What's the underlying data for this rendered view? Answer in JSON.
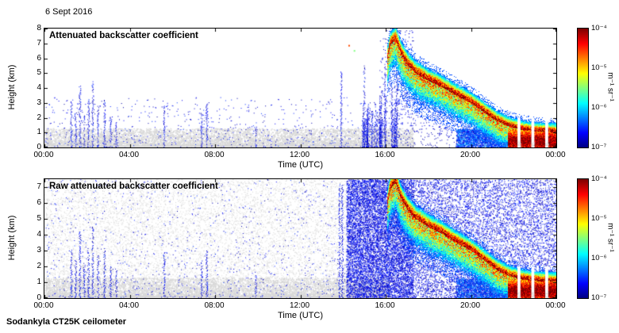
{
  "page": {
    "date_label": "6 Sept 2016",
    "footer": "Sodankyla CT25K ceilometer"
  },
  "chart_data": [
    {
      "type": "heatmap",
      "title": "Attenuated backscatter coefficient",
      "xlabel": "Time (UTC)",
      "ylabel": "Height (km)",
      "x_range_hours": [
        0,
        24
      ],
      "x_tick_hours": [
        0,
        4,
        8,
        12,
        16,
        20,
        24
      ],
      "x_tick_labels": [
        "00:00",
        "04:00",
        "08:00",
        "12:00",
        "16:00",
        "20:00",
        "00:00"
      ],
      "y_range_km": [
        0,
        8
      ],
      "y_tick_km": [
        0,
        1,
        2,
        3,
        4,
        5,
        6,
        7,
        8
      ],
      "y_tick_labels": [
        "0",
        "1",
        "2",
        "3",
        "4",
        "5",
        "6",
        "7",
        "8"
      ],
      "colorbar": {
        "label": "m⁻¹ sr⁻¹",
        "tick_labels": [
          "10⁻⁴",
          "10⁻⁵",
          "10⁻⁶",
          "10⁻⁷"
        ],
        "range_log10_m1sr1": [
          -7,
          -4
        ],
        "colormap": "jet"
      },
      "features": {
        "surface_aerosol_gray_layer": {
          "time_hours": [
            0,
            17.3
          ],
          "height_km": [
            0,
            1.3
          ]
        },
        "plume_track_time_height": [
          [
            16.05,
            5.8
          ],
          [
            16.2,
            6.9
          ],
          [
            16.45,
            7.3
          ],
          [
            16.7,
            6.3
          ],
          [
            17.0,
            5.6
          ],
          [
            17.4,
            5.0
          ],
          [
            18.0,
            4.5
          ],
          [
            18.6,
            4.1
          ],
          [
            19.2,
            3.6
          ],
          [
            20.0,
            3.0
          ],
          [
            20.6,
            2.4
          ],
          [
            21.2,
            1.8
          ],
          [
            21.8,
            1.4
          ],
          [
            22.4,
            1.2
          ],
          [
            23.0,
            1.1
          ],
          [
            24.0,
            1.05
          ]
        ],
        "precip_to_ground_after_hour": 21.7,
        "clear_gaps_hours": [
          22.25,
          22.9,
          23.55
        ],
        "aerosol_spikes_time_top_km": [
          [
            1.25,
            3.1
          ],
          [
            1.45,
            2.4
          ],
          [
            1.65,
            4.2
          ],
          [
            1.85,
            2.2
          ],
          [
            2.05,
            3.3
          ],
          [
            2.25,
            4.5
          ],
          [
            2.5,
            2.7
          ],
          [
            2.8,
            3.2
          ],
          [
            3.1,
            2.1
          ],
          [
            3.35,
            1.8
          ],
          [
            5.6,
            2.9
          ],
          [
            7.35,
            2.3
          ],
          [
            7.6,
            3.0
          ],
          [
            9.9,
            1.5
          ],
          [
            13.9,
            5.1
          ]
        ]
      },
      "render": {
        "gray_color": "#d8d8d8",
        "gray_surface": {
          "t": [
            0,
            17.3
          ],
          "hmax": 1.3,
          "n": 9000
        },
        "blue_ambient": {
          "t": [
            0,
            15.5
          ],
          "hmax": 3.4,
          "n": 650
        },
        "preplume_columns": {
          "t": [
            14.9,
            16.55
          ],
          "n": 42
        },
        "above_plume_dots": {
          "t": [
            15.7,
            17.3
          ],
          "hmax": 7.9,
          "n": 320
        },
        "subplume_dots": {
          "t": [
            16.4,
            21.8
          ],
          "n": 3200
        },
        "low_level_dots": {
          "t": [
            19.3,
            21.8
          ],
          "hmax": 1.25,
          "n": 2300
        },
        "isolated_dots": [
          [
            14.25,
            6.9,
            0.8
          ],
          [
            14.5,
            6.55,
            0.5
          ]
        ]
      }
    },
    {
      "type": "heatmap",
      "title": "Raw attenuated backscatter coefficient",
      "xlabel": "Time (UTC)",
      "ylabel": "Height (km)",
      "x_range_hours": [
        0,
        24
      ],
      "x_tick_hours": [
        0,
        4,
        8,
        12,
        16,
        20,
        24
      ],
      "x_tick_labels": [
        "00:00",
        "04:00",
        "08:00",
        "12:00",
        "16:00",
        "20:00",
        "00:00"
      ],
      "y_range_km": [
        0,
        7.5
      ],
      "y_tick_km": [
        0,
        1,
        2,
        3,
        4,
        5,
        6,
        7
      ],
      "y_tick_labels": [
        "0",
        "1",
        "2",
        "3",
        "4",
        "5",
        "6",
        "7"
      ],
      "colorbar": {
        "label": "m⁻¹ sr⁻¹",
        "tick_labels": [
          "10⁻⁴",
          "10⁻⁵",
          "10⁻⁶",
          "10⁻⁷"
        ],
        "range_log10_m1sr1": [
          -7,
          -4
        ],
        "colormap": "jet"
      },
      "features": {
        "surface_aerosol_gray_layer": {
          "time_hours": [
            0,
            16.2
          ],
          "height_km": [
            0,
            1.3
          ]
        },
        "plume_track_time_height": [
          [
            16.05,
            5.8
          ],
          [
            16.2,
            6.9
          ],
          [
            16.45,
            7.3
          ],
          [
            16.7,
            6.3
          ],
          [
            17.0,
            5.6
          ],
          [
            17.4,
            5.0
          ],
          [
            18.0,
            4.5
          ],
          [
            18.6,
            4.1
          ],
          [
            19.2,
            3.6
          ],
          [
            20.0,
            3.0
          ],
          [
            20.6,
            2.4
          ],
          [
            21.2,
            1.8
          ],
          [
            21.8,
            1.4
          ],
          [
            22.4,
            1.2
          ],
          [
            23.0,
            1.1
          ],
          [
            24.0,
            1.05
          ]
        ],
        "precip_to_ground_after_hour": 21.7,
        "clear_gaps_hours": [
          22.25,
          22.9,
          23.55
        ],
        "aerosol_spikes_time_top_km": [
          [
            1.25,
            3.1
          ],
          [
            1.45,
            2.4
          ],
          [
            1.65,
            4.2
          ],
          [
            1.85,
            2.2
          ],
          [
            2.05,
            3.3
          ],
          [
            2.25,
            4.5
          ],
          [
            2.5,
            2.7
          ],
          [
            2.8,
            3.2
          ],
          [
            3.1,
            2.1
          ],
          [
            3.35,
            1.8
          ],
          [
            5.6,
            2.9
          ],
          [
            7.35,
            2.3
          ],
          [
            7.6,
            3.0
          ],
          [
            9.9,
            1.5
          ],
          [
            13.82,
            7.2
          ],
          [
            13.95,
            7.2
          ]
        ]
      },
      "render": {
        "gray_color": "#d8d8d8",
        "gray_surface": {
          "t": [
            0,
            16.2
          ],
          "hmax": 1.3,
          "n": 8000
        },
        "gray_wash": {
          "t": [
            0,
            14.15
          ],
          "hmax": 7.5,
          "n": 8000
        },
        "blue_ambient": {
          "t": [
            0,
            14.15
          ],
          "hmax": 7.5,
          "n": 1000
        },
        "blue_wash_dense": {
          "t": [
            14.15,
            17.3
          ],
          "hmax": 7.5,
          "n": 10000
        },
        "blue_wash_late": {
          "t": [
            17.3,
            24
          ],
          "hmax": 7.5,
          "n": 7500
        },
        "subplume_dots": {
          "t": [
            16.4,
            21.8
          ],
          "n": 2400
        },
        "low_level_dots": {
          "t": [
            19.3,
            21.8
          ],
          "hmax": 1.25,
          "n": 2000
        },
        "isolated_dots": []
      }
    }
  ]
}
